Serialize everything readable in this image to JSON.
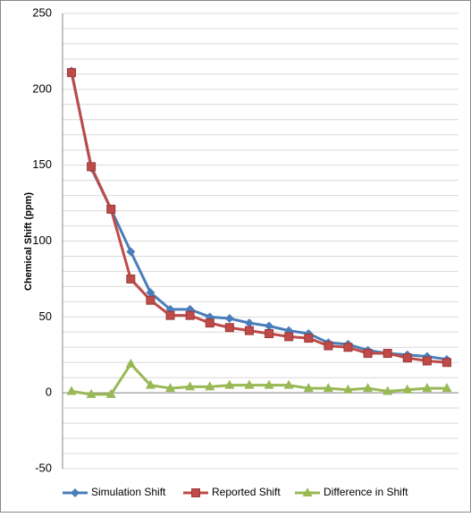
{
  "chart_data": {
    "type": "line",
    "y_label": "Chemical Shift (ppm)",
    "ylim": [
      -50,
      250
    ],
    "yticks": [
      -50,
      0,
      50,
      100,
      150,
      200,
      250
    ],
    "minor_yticks": [
      -40,
      -30,
      -20,
      -10,
      10,
      20,
      30,
      40,
      60,
      70,
      80,
      90,
      110,
      120,
      130,
      140,
      160,
      170,
      180,
      190,
      210,
      220,
      230,
      240
    ],
    "grid": true,
    "legend": "bottom",
    "series": [
      {
        "name": "Simulation Shift",
        "color": "#4a7ebb",
        "marker": "diamond",
        "values": [
          212,
          148,
          121,
          93,
          66,
          55,
          55,
          50,
          49,
          46,
          44,
          41,
          39,
          33,
          32,
          28,
          26,
          25,
          24,
          22
        ]
      },
      {
        "name": "Reported Shift",
        "color": "#be4b48",
        "marker": "square",
        "values": [
          211,
          149,
          121,
          75,
          61,
          51,
          51,
          46,
          43,
          41,
          39,
          37,
          36,
          31,
          30,
          26,
          26,
          23,
          21,
          20
        ]
      },
      {
        "name": "Difference in Shift",
        "color": "#98b954",
        "marker": "triangle",
        "values": [
          1,
          -1,
          -1,
          19,
          5,
          3,
          4,
          4,
          5,
          5,
          5,
          5,
          3,
          3,
          2,
          3,
          1,
          2,
          3,
          3
        ]
      }
    ]
  }
}
